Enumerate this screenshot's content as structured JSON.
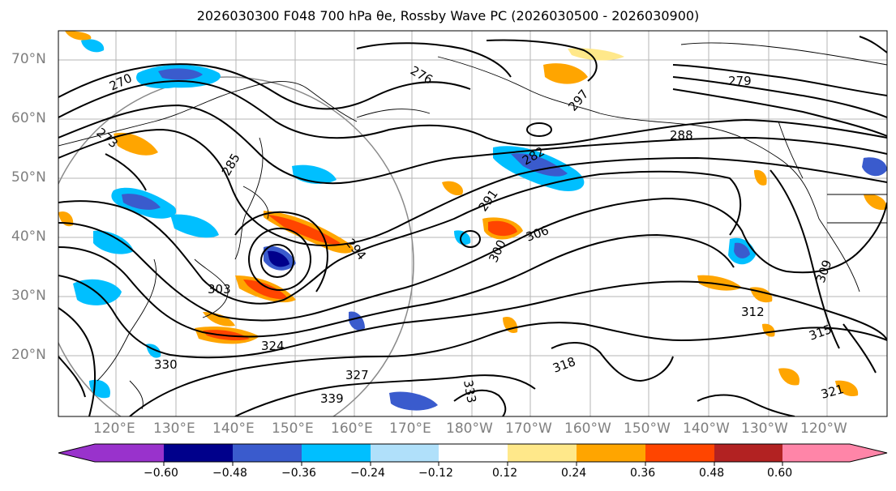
{
  "title": "2026030300 F048 700 hPa θe, Rossby Wave PC (2026030500 - 2026030900)",
  "map": {
    "lat_labels": [
      "70°N",
      "60°N",
      "50°N",
      "40°N",
      "30°N",
      "20°N"
    ],
    "lon_labels": [
      "120°E",
      "130°E",
      "140°E",
      "150°E",
      "160°E",
      "170°E",
      "180°W",
      "170°W",
      "160°W",
      "150°W",
      "140°W",
      "130°W",
      "120°W"
    ],
    "contour_labels": [
      "270",
      "273",
      "276",
      "279",
      "282",
      "285",
      "288",
      "291",
      "294",
      "297",
      "300",
      "303",
      "306",
      "309",
      "312",
      "315",
      "318",
      "321",
      "324",
      "327",
      "330",
      "333",
      "339"
    ]
  },
  "colorbar": {
    "ticks": [
      "−0.60",
      "−0.48",
      "−0.36",
      "−0.24",
      "−0.12",
      "0.12",
      "0.24",
      "0.36",
      "0.48",
      "0.60"
    ],
    "colors": [
      "#9932cc",
      "#00008b",
      "#3a5bcd",
      "#00bfff",
      "#b0e0fa",
      "#ffffff",
      "#ffe88a",
      "#ffa500",
      "#ff4500",
      "#b22222",
      "#ff85a8"
    ]
  }
}
